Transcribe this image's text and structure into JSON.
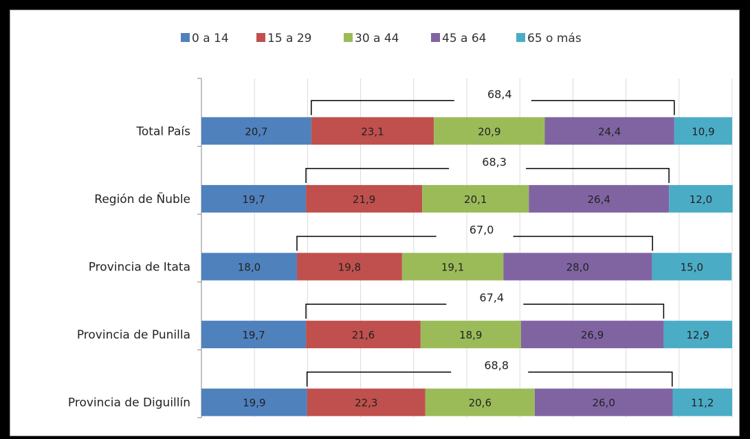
{
  "chart_data": {
    "type": "bar",
    "orientation": "horizontal",
    "stacked": true,
    "percent_stacked": true,
    "categories": [
      "Total País",
      "Región de Ñuble",
      "Provincia de Itata",
      "Provincia de Punilla",
      "Provincia de Diguillín"
    ],
    "series": [
      {
        "name": "0 a 14",
        "color": "#4f81bd",
        "values": [
          20.7,
          19.7,
          18.0,
          19.7,
          19.9
        ],
        "labels": [
          "20,7",
          "19,7",
          "18,0",
          "19,7",
          "19,9"
        ]
      },
      {
        "name": "15 a 29",
        "color": "#c0504d",
        "values": [
          23.1,
          21.9,
          19.8,
          21.6,
          22.3
        ],
        "labels": [
          "23,1",
          "21,9",
          "19,8",
          "21,6",
          "22,3"
        ]
      },
      {
        "name": "30 a 44",
        "color": "#9bbb59",
        "values": [
          20.9,
          20.1,
          19.1,
          18.9,
          20.6
        ],
        "labels": [
          "20,9",
          "20,1",
          "19,1",
          "18,9",
          "20,6"
        ]
      },
      {
        "name": "45 a 64",
        "color": "#8064a2",
        "values": [
          24.4,
          26.4,
          28.0,
          26.9,
          26.0
        ],
        "labels": [
          "24,4",
          "26,4",
          "28,0",
          "26,9",
          "26,0"
        ]
      },
      {
        "name": "65 o más",
        "color": "#4bacc6",
        "values": [
          10.9,
          12.0,
          15.0,
          12.9,
          11.2
        ],
        "labels": [
          "10,9",
          "12,0",
          "15,0",
          "12,9",
          "11,2"
        ]
      }
    ],
    "annotations": [
      {
        "category": "Total País",
        "text": "68,4",
        "from": 20.7,
        "to": 89.1
      },
      {
        "category": "Región de Ñuble",
        "text": "68,3",
        "from": 19.7,
        "to": 88.1
      },
      {
        "category": "Provincia de Itata",
        "text": "67,0",
        "from": 18.0,
        "to": 85.0
      },
      {
        "category": "Provincia de Punilla",
        "text": "67,4",
        "from": 19.7,
        "to": 87.1
      },
      {
        "category": "Provincia de Diguillín",
        "text": "68,8",
        "from": 19.9,
        "to": 88.7
      }
    ],
    "xlim": [
      0,
      100
    ],
    "grid": true,
    "legend_position": "top"
  }
}
